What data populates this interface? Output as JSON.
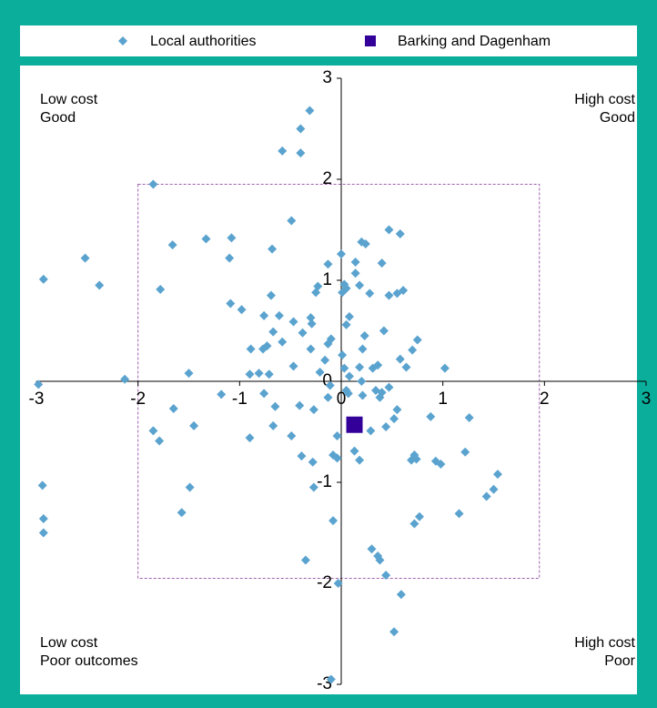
{
  "chart_data": {
    "type": "scatter",
    "quadrant_labels": {
      "top_left": [
        "Low cost",
        "Good"
      ],
      "top_right": [
        "High cost",
        "Good"
      ],
      "bottom_left": [
        "Low cost",
        "Poor outcomes"
      ],
      "bottom_right": [
        "High cost",
        "Poor"
      ]
    },
    "xlim": [
      -3,
      3
    ],
    "ylim": [
      -3,
      3
    ],
    "xticks": [
      -3,
      -2,
      -1,
      0,
      1,
      2,
      3
    ],
    "yticks": [
      -3,
      -2,
      -1,
      0,
      1,
      2,
      3
    ],
    "box": {
      "xlim": [
        -2,
        1.95
      ],
      "ylim": [
        -1.95,
        1.95
      ]
    },
    "series": [
      {
        "name": "Local authorities",
        "color": "#5ba3cf",
        "marker": "diamond",
        "x": [
          -0.31,
          -0.4,
          -0.58,
          -0.4,
          -1.85,
          -0.49,
          0.47,
          0.58,
          -1.33,
          -1.66,
          -1.08,
          0.2,
          0.24,
          -0.68,
          0,
          -2.52,
          -1.1,
          0.14,
          0.4,
          -0.13,
          0.14,
          -2.93,
          -2.38,
          0.03,
          -0.23,
          0.05,
          0.18,
          -1.78,
          0.01,
          0.61,
          0.55,
          -0.25,
          0.28,
          0.47,
          -0.69,
          -1.09,
          -0.98,
          -0.61,
          -0.76,
          0.08,
          -0.3,
          -0.29,
          -0.47,
          0.05,
          -0.67,
          0.42,
          -0.38,
          0.23,
          -0.1,
          -0.58,
          0.75,
          -0.73,
          -0.13,
          -0.77,
          -0.89,
          -0.3,
          0.7,
          0.21,
          0.01,
          0.58,
          -0.16,
          -0.47,
          0.18,
          0.03,
          0.31,
          0.36,
          0.64,
          1.02,
          -0.21,
          -1.5,
          -0.9,
          -0.81,
          -0.71,
          0.08,
          0.2,
          -2.13,
          -2.98,
          -0.11,
          0.47,
          0.34,
          0.05,
          0.4,
          0.07,
          -0.76,
          -1.18,
          0.21,
          0.38,
          -0.13,
          -0.41,
          -0.65,
          -1.65,
          -0.27,
          0.55,
          0.88,
          1.26,
          0.52,
          -1.45,
          -0.67,
          0.44,
          0.29,
          -1.85,
          -0.49,
          -1.79,
          -0.04,
          -0.9,
          0.13,
          1.22,
          0.72,
          0.74,
          -0.39,
          -0.08,
          0.69,
          -0.28,
          -0.04,
          0.18,
          0.93,
          0.98,
          1.54,
          -2.94,
          -1.49,
          -0.27,
          1.5,
          1.43,
          -1.57,
          1.16,
          -2.93,
          0.77,
          -0.08,
          0.72,
          -2.93,
          0.3,
          0.36,
          0.38,
          -0.35,
          0.44,
          -0.03,
          0.59,
          0.52,
          -0.1
        ],
        "y": [
          2.68,
          2.5,
          2.28,
          2.26,
          1.95,
          1.59,
          1.5,
          1.46,
          1.41,
          1.35,
          1.42,
          1.38,
          1.36,
          1.31,
          1.26,
          1.22,
          1.22,
          1.18,
          1.17,
          1.16,
          1.07,
          1.01,
          0.95,
          0.96,
          0.94,
          0.92,
          0.95,
          0.91,
          0.88,
          0.9,
          0.87,
          0.88,
          0.87,
          0.85,
          0.85,
          0.77,
          0.71,
          0.65,
          0.65,
          0.64,
          0.63,
          0.57,
          0.59,
          0.56,
          0.49,
          0.5,
          0.48,
          0.45,
          0.42,
          0.39,
          0.41,
          0.35,
          0.37,
          0.32,
          0.32,
          0.32,
          0.31,
          0.32,
          0.26,
          0.22,
          0.21,
          0.15,
          0.14,
          0.13,
          0.13,
          0.16,
          0.14,
          0.13,
          0.09,
          0.08,
          0.07,
          0.08,
          0.07,
          0.05,
          0,
          0.02,
          -0.03,
          -0.04,
          -0.06,
          -0.09,
          -0.09,
          -0.11,
          -0.12,
          -0.12,
          -0.13,
          -0.14,
          -0.16,
          -0.16,
          -0.24,
          -0.25,
          -0.27,
          -0.28,
          -0.28,
          -0.35,
          -0.36,
          -0.37,
          -0.44,
          -0.44,
          -0.45,
          -0.49,
          -0.49,
          -0.54,
          -0.59,
          -0.54,
          -0.56,
          -0.69,
          -0.7,
          -0.73,
          -0.77,
          -0.74,
          -0.73,
          -0.78,
          -0.8,
          -0.76,
          -0.78,
          -0.79,
          -0.82,
          -0.92,
          -1.03,
          -1.05,
          -1.05,
          -1.07,
          -1.14,
          -1.3,
          -1.31,
          -1.36,
          -1.34,
          -1.38,
          -1.41,
          -1.5,
          -1.66,
          -1.73,
          -1.77,
          -1.77,
          -1.92,
          -2,
          -2.11,
          -2.48,
          -2.95
        ]
      },
      {
        "name": "Barking and Dagenham",
        "color": "#330099",
        "marker": "square",
        "x": [
          0.13
        ],
        "y": [
          -0.43
        ]
      }
    ]
  }
}
